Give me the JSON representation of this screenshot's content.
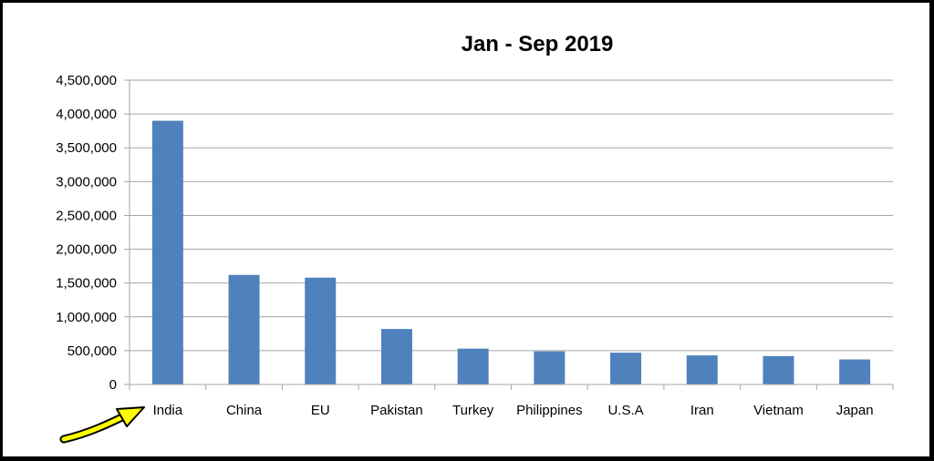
{
  "chart_data": {
    "type": "bar",
    "title": "Jan - Sep 2019",
    "xlabel": "",
    "ylabel": "",
    "categories": [
      "India",
      "China",
      "EU",
      "Pakistan",
      "Turkey",
      "Philippines",
      "U.S.A",
      "Iran",
      "Vietnam",
      "Japan"
    ],
    "values": [
      3900000,
      1620000,
      1580000,
      820000,
      530000,
      490000,
      470000,
      430000,
      420000,
      370000
    ],
    "ylim": [
      0,
      4500000
    ],
    "yticks": [
      0,
      500000,
      1000000,
      1500000,
      2000000,
      2500000,
      3000000,
      3500000,
      4000000,
      4500000
    ],
    "ytick_labels": [
      "0",
      "500,000",
      "1,000,000",
      "1,500,000",
      "2,000,000",
      "2,500,000",
      "3,000,000",
      "3,500,000",
      "4,000,000",
      "4,500,000"
    ],
    "grid": true,
    "legend": "none",
    "bar_color": "#4F81BD"
  },
  "colors": {
    "gridline": "#a6a6a6",
    "annotation_arrow": "#ffff00",
    "annotation_outline": "#000000"
  },
  "annotation": {
    "icon": "arrow-icon",
    "target_category": "India"
  }
}
